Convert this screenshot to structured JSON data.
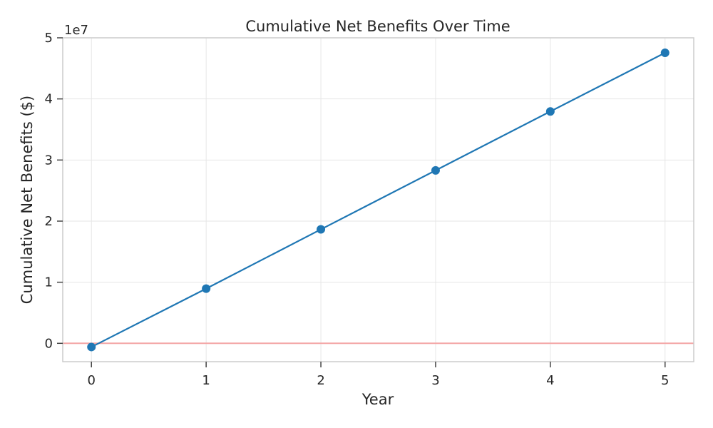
{
  "chart_data": {
    "type": "line",
    "title": "Cumulative Net Benefits Over Time",
    "xlabel": "Year",
    "ylabel": "Cumulative Net Benefits ($)",
    "y_offset_label": "1e7",
    "x": [
      0,
      1,
      2,
      3,
      4,
      5
    ],
    "series": [
      {
        "values": [
          -600000,
          8950000,
          18650000,
          28300000,
          37950000,
          47550000
        ],
        "color": "#1f77b4",
        "marker": "circle"
      }
    ],
    "reference_line": {
      "y": 0,
      "color": "#f4a6a6"
    },
    "xlim": [
      -0.25,
      5.25
    ],
    "ylim": [
      -3000000,
      50000000
    ],
    "x_ticks": [
      0,
      1,
      2,
      3,
      4,
      5
    ],
    "x_tick_labels": [
      "0",
      "1",
      "2",
      "3",
      "4",
      "5"
    ],
    "y_ticks": [
      0,
      10000000,
      20000000,
      30000000,
      40000000,
      50000000
    ],
    "y_tick_labels": [
      "0",
      "1",
      "2",
      "3",
      "4",
      "5"
    ],
    "grid": true,
    "legend": false
  }
}
